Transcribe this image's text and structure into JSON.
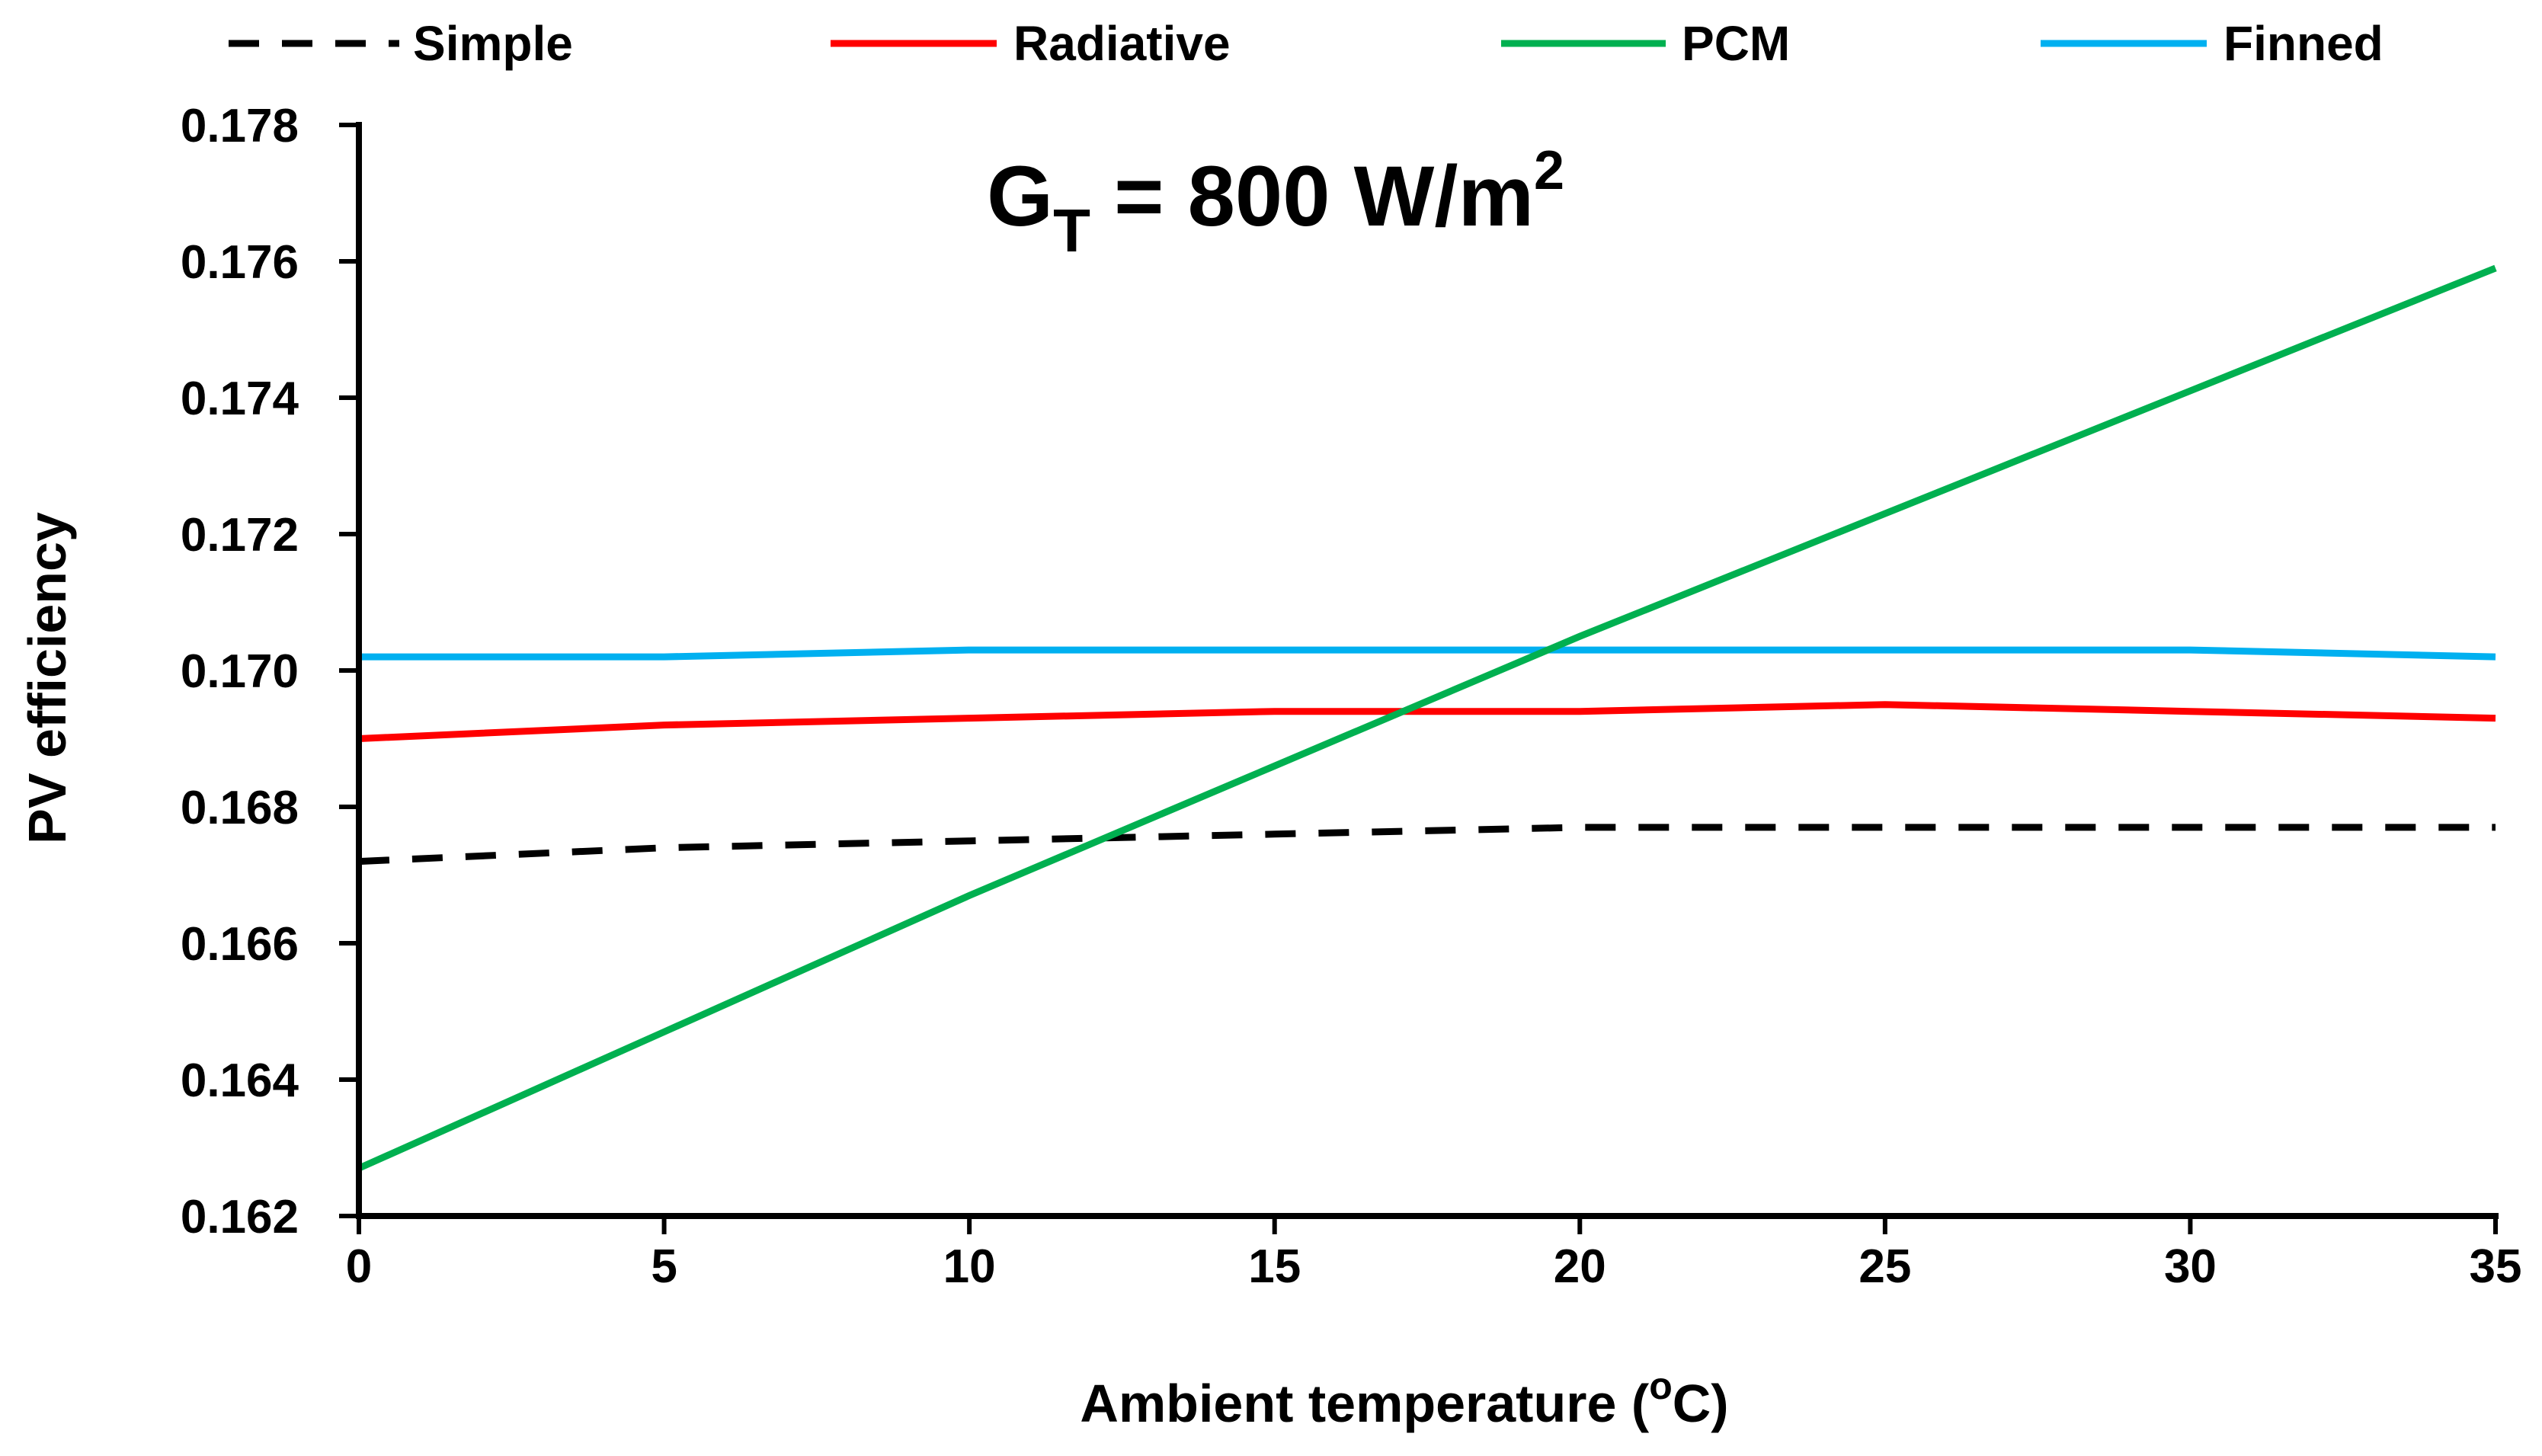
{
  "chart_data": {
    "type": "line",
    "title": "",
    "xlabel": "Ambient temperature (",
    "xlabel_unit_sup": "o",
    "xlabel_unit_tail": "C)",
    "ylabel": "PV efficiency",
    "annotation": {
      "main": "G",
      "sub": "T",
      "mid": " = 800 W/m",
      "sup": "2"
    },
    "xlim": [
      0,
      35
    ],
    "ylim": [
      0.162,
      0.178
    ],
    "x_ticks": [
      0,
      5,
      10,
      15,
      20,
      25,
      30,
      35
    ],
    "x_tick_labels": [
      "0",
      "5",
      "10",
      "15",
      "20",
      "25",
      "30",
      "35"
    ],
    "y_ticks": [
      0.162,
      0.164,
      0.166,
      0.168,
      0.17,
      0.172,
      0.174,
      0.176,
      0.178
    ],
    "y_tick_labels": [
      "0.162",
      "0.164",
      "0.166",
      "0.168",
      "0.170",
      "0.172",
      "0.174",
      "0.176",
      "0.178"
    ],
    "grid": false,
    "legend_position": "top",
    "x": [
      0,
      5,
      10,
      15,
      20,
      25,
      30,
      35
    ],
    "series": [
      {
        "name": "Simple",
        "color": "#000000",
        "dash": true,
        "values": [
          0.1672,
          0.1674,
          0.1675,
          0.1676,
          0.1677,
          0.1677,
          0.1677,
          0.1677
        ]
      },
      {
        "name": "Radiative",
        "color": "#ff0000",
        "dash": false,
        "values": [
          0.169,
          0.1692,
          0.1693,
          0.1694,
          0.1694,
          0.1695,
          0.1694,
          0.1693
        ]
      },
      {
        "name": "PCM",
        "color": "#00b050",
        "dash": false,
        "values": [
          0.1627,
          0.1647,
          0.1667,
          0.1686,
          0.1705,
          0.1723,
          0.1741,
          0.1759
        ]
      },
      {
        "name": "Finned",
        "color": "#00b0f0",
        "dash": false,
        "values": [
          0.1702,
          0.1702,
          0.1703,
          0.1703,
          0.1703,
          0.1703,
          0.1703,
          0.1702
        ]
      }
    ]
  }
}
